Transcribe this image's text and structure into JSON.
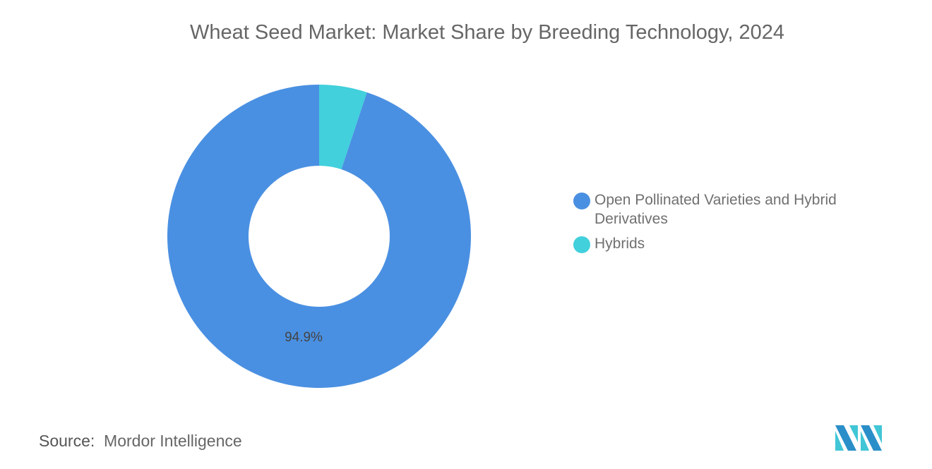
{
  "chart_data": {
    "type": "pie",
    "variant": "donut",
    "title": "Wheat Seed Market: Market Share by Breeding Technology, 2024",
    "categories": [
      "Open Pollinated Varieties and Hybrid Derivatives",
      "Hybrids"
    ],
    "values": [
      94.9,
      5.1
    ],
    "colors": [
      "#4a90e2",
      "#41d0dc"
    ],
    "data_labels": [
      "94.9%",
      ""
    ],
    "legend_position": "right"
  },
  "source": {
    "label": "Source:",
    "value": "Mordor Intelligence"
  },
  "logo_text": "Mordor Intelligence"
}
